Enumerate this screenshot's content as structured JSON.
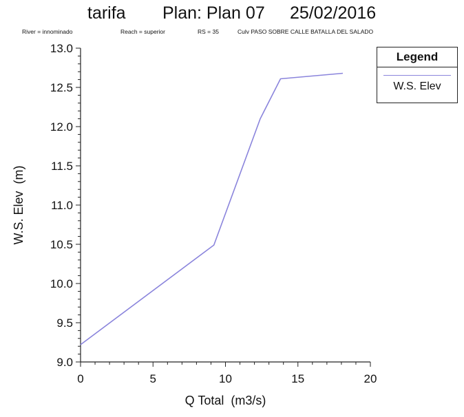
{
  "header": {
    "project": "tarifa",
    "plan": "Plan: Plan 07",
    "date": "25/02/2016",
    "river": "River = innominado",
    "reach": "Reach = superior",
    "rs": "RS = 35",
    "culvert": "Culv PASO SOBRE CALLE BATALLA DEL SALADO"
  },
  "legend": {
    "title": "Legend",
    "entries": [
      "W.S. Elev"
    ]
  },
  "colors": {
    "series": "#8a84dc",
    "axis": "#222222"
  },
  "chart_data": {
    "type": "line",
    "xlabel": "Q Total  (m3/s)",
    "ylabel": "W.S. Elev  (m)",
    "xlim": [
      0,
      20
    ],
    "ylim": [
      9.0,
      13.0
    ],
    "x_ticks": [
      "0",
      "5",
      "10",
      "15",
      "20"
    ],
    "y_ticks": [
      "9.0",
      "9.5",
      "10.0",
      "10.5",
      "11.0",
      "11.5",
      "12.0",
      "12.5",
      "13.0"
    ],
    "grid": false,
    "legend_position": "top-right",
    "series": [
      {
        "name": "W.S. Elev",
        "x": [
          0.0,
          9.2,
          12.4,
          13.8,
          18.1
        ],
        "y": [
          9.22,
          10.49,
          12.1,
          12.61,
          12.68
        ]
      }
    ]
  }
}
